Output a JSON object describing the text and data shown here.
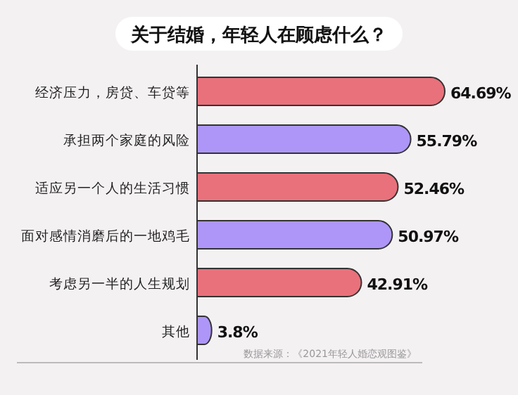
{
  "chart_data": {
    "type": "bar",
    "orientation": "horizontal",
    "title": "关于结婚，年轻人在顾虑什么？",
    "categories": [
      "经济压力，房贷、车贷等",
      "承担两个家庭的风险",
      "适应另一个人的生活习惯",
      "面对感情消磨后的一地鸡毛",
      "考虑另一半的人生规划",
      "其他"
    ],
    "values": [
      64.69,
      55.79,
      52.46,
      50.97,
      42.91,
      3.8
    ],
    "colors": [
      "#e9717b",
      "#ad96f7",
      "#e9717b",
      "#ad96f7",
      "#e9717b",
      "#ad96f7"
    ],
    "value_labels": [
      "64.69%",
      "55.79%",
      "52.46%",
      "50.97%",
      "42.91%",
      "3.8%"
    ],
    "annotations": [
      "数据来源：《2021年轻人婚恋观图鉴》"
    ]
  }
}
